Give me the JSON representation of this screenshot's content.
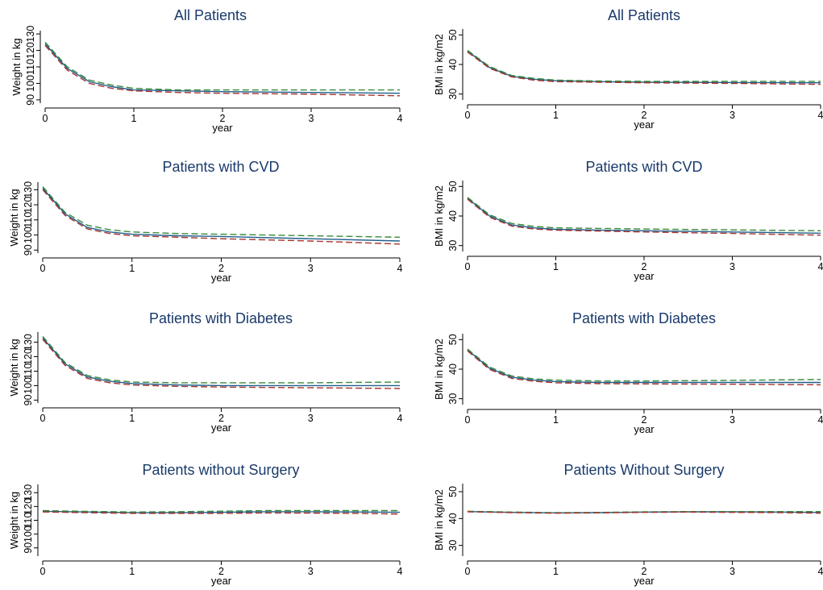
{
  "colors": {
    "title": "#1a3a6b",
    "axis": "#000000",
    "solid": "#1f5f8b",
    "dash_green": "#3a8a3a",
    "dash_red": "#a8322f"
  },
  "chart_data": [
    {
      "type": "line",
      "title": "All Patients",
      "xlabel": "year",
      "ylabel": "Weight in kg",
      "xlim": [
        0,
        4
      ],
      "ylim": [
        88,
        132
      ],
      "x_ticks": [
        "0",
        "1",
        "2",
        "3",
        "4"
      ],
      "y_ticks": [
        90,
        100,
        110,
        120,
        130
      ],
      "series": [
        {
          "style": "solid",
          "color": "#1f5f8b",
          "x": [
            0,
            0.25,
            0.5,
            0.75,
            1,
            1.5,
            2,
            3,
            4
          ],
          "y": [
            124,
            109,
            101,
            98,
            96,
            95.5,
            95,
            94.5,
            94
          ]
        },
        {
          "style": "dash",
          "color": "#3a8a3a",
          "x": [
            0,
            0.25,
            0.5,
            0.75,
            1,
            1.5,
            2,
            3,
            4
          ],
          "y": [
            125,
            110,
            102,
            99,
            97,
            96,
            96,
            96,
            96
          ]
        },
        {
          "style": "dash",
          "color": "#a8322f",
          "x": [
            0,
            0.25,
            0.5,
            0.75,
            1,
            1.5,
            2,
            3,
            4
          ],
          "y": [
            123,
            108,
            100,
            97,
            95.5,
            94.5,
            94,
            93.5,
            92.5
          ]
        }
      ]
    },
    {
      "type": "line",
      "title": "All Patients",
      "xlabel": "year",
      "ylabel": "BMI in kg/m2",
      "xlim": [
        0,
        4
      ],
      "ylim": [
        28,
        52
      ],
      "x_ticks": [
        "0",
        "1",
        "2",
        "3",
        "4"
      ],
      "y_ticks": [
        30,
        40,
        50
      ],
      "series": [
        {
          "style": "solid",
          "color": "#1f5f8b",
          "x": [
            0,
            0.25,
            0.5,
            0.75,
            1,
            1.5,
            2,
            3,
            4
          ],
          "y": [
            44.5,
            39,
            36,
            35,
            34.5,
            34.2,
            34,
            33.9,
            33.8
          ]
        },
        {
          "style": "dash",
          "color": "#3a8a3a",
          "x": [
            0,
            0.25,
            0.5,
            0.75,
            1,
            1.5,
            2,
            3,
            4
          ],
          "y": [
            44.8,
            39.3,
            36.3,
            35.3,
            34.7,
            34.4,
            34.3,
            34.3,
            34.3
          ]
        },
        {
          "style": "dash",
          "color": "#a8322f",
          "x": [
            0,
            0.25,
            0.5,
            0.75,
            1,
            1.5,
            2,
            3,
            4
          ],
          "y": [
            44.2,
            38.7,
            35.8,
            34.7,
            34.2,
            34,
            33.8,
            33.6,
            33.3
          ]
        }
      ]
    },
    {
      "type": "line",
      "title": "Patients with CVD",
      "xlabel": "year",
      "ylabel": "Weight in kg",
      "xlim": [
        0,
        4
      ],
      "ylim": [
        88,
        135
      ],
      "x_ticks": [
        "0",
        "1",
        "2",
        "3",
        "4"
      ],
      "y_ticks": [
        90,
        100,
        110,
        120,
        130
      ],
      "series": [
        {
          "style": "solid",
          "color": "#1f5f8b",
          "x": [
            0,
            0.25,
            0.5,
            0.75,
            1,
            1.5,
            2,
            3,
            4
          ],
          "y": [
            131,
            114,
            105,
            102,
            100.5,
            99.5,
            99,
            97.5,
            96
          ]
        },
        {
          "style": "dash",
          "color": "#3a8a3a",
          "x": [
            0,
            0.25,
            0.5,
            0.75,
            1,
            1.5,
            2,
            3,
            4
          ],
          "y": [
            132,
            115,
            106.5,
            103.5,
            102,
            101,
            100.5,
            99.5,
            98.5
          ]
        },
        {
          "style": "dash",
          "color": "#a8322f",
          "x": [
            0,
            0.25,
            0.5,
            0.75,
            1,
            1.5,
            2,
            3,
            4
          ],
          "y": [
            130,
            113,
            104,
            101,
            99.5,
            98.5,
            97.5,
            96,
            94
          ]
        }
      ]
    },
    {
      "type": "line",
      "title": "Patients with CVD",
      "xlabel": "year",
      "ylabel": "BMI in kg/m2",
      "xlim": [
        0,
        4
      ],
      "ylim": [
        28,
        52
      ],
      "x_ticks": [
        "0",
        "1",
        "2",
        "3",
        "4"
      ],
      "y_ticks": [
        30,
        40,
        50
      ],
      "series": [
        {
          "style": "solid",
          "color": "#1f5f8b",
          "x": [
            0,
            0.25,
            0.5,
            0.75,
            1,
            1.5,
            2,
            3,
            4
          ],
          "y": [
            46,
            40,
            37,
            36,
            35.5,
            35.2,
            35,
            34.6,
            34.2
          ]
        },
        {
          "style": "dash",
          "color": "#3a8a3a",
          "x": [
            0,
            0.25,
            0.5,
            0.75,
            1,
            1.5,
            2,
            3,
            4
          ],
          "y": [
            46.3,
            40.4,
            37.5,
            36.5,
            36,
            35.8,
            35.6,
            35.3,
            35
          ]
        },
        {
          "style": "dash",
          "color": "#a8322f",
          "x": [
            0,
            0.25,
            0.5,
            0.75,
            1,
            1.5,
            2,
            3,
            4
          ],
          "y": [
            45.7,
            39.6,
            36.6,
            35.6,
            35.2,
            34.9,
            34.6,
            34.1,
            33.5
          ]
        }
      ]
    },
    {
      "type": "line",
      "title": "Patients with Diabetes",
      "xlabel": "year",
      "ylabel": "Weight in kg",
      "xlim": [
        0,
        4
      ],
      "ylim": [
        88,
        137
      ],
      "x_ticks": [
        "0",
        "1",
        "2",
        "3",
        "4"
      ],
      "y_ticks": [
        90,
        100,
        110,
        120,
        130
      ],
      "series": [
        {
          "style": "solid",
          "color": "#1f5f8b",
          "x": [
            0,
            0.25,
            0.5,
            0.75,
            1,
            1.5,
            2,
            3,
            4
          ],
          "y": [
            133,
            115,
            106,
            103,
            101.5,
            100.5,
            100,
            100,
            100
          ]
        },
        {
          "style": "dash",
          "color": "#3a8a3a",
          "x": [
            0,
            0.25,
            0.5,
            0.75,
            1,
            1.5,
            2,
            3,
            4
          ],
          "y": [
            134,
            116,
            107,
            104,
            102.5,
            102,
            102,
            102,
            102.5
          ]
        },
        {
          "style": "dash",
          "color": "#a8322f",
          "x": [
            0,
            0.25,
            0.5,
            0.75,
            1,
            1.5,
            2,
            3,
            4
          ],
          "y": [
            132,
            114,
            105,
            102,
            100.5,
            99.5,
            99,
            98.5,
            98
          ]
        }
      ]
    },
    {
      "type": "line",
      "title": "Patients with Diabetes",
      "xlabel": "year",
      "ylabel": "BMI in kg/m2",
      "xlim": [
        0,
        4
      ],
      "ylim": [
        28,
        52
      ],
      "x_ticks": [
        "0",
        "1",
        "2",
        "3",
        "4"
      ],
      "y_ticks": [
        30,
        40,
        50
      ],
      "series": [
        {
          "style": "solid",
          "color": "#1f5f8b",
          "x": [
            0,
            0.25,
            0.5,
            0.75,
            1,
            1.5,
            2,
            3,
            4
          ],
          "y": [
            46.5,
            40.3,
            37.3,
            36.3,
            35.8,
            35.5,
            35.5,
            35.5,
            35.5
          ]
        },
        {
          "style": "dash",
          "color": "#3a8a3a",
          "x": [
            0,
            0.25,
            0.5,
            0.75,
            1,
            1.5,
            2,
            3,
            4
          ],
          "y": [
            46.8,
            40.7,
            37.7,
            36.7,
            36.3,
            36,
            36,
            36.2,
            36.5
          ]
        },
        {
          "style": "dash",
          "color": "#a8322f",
          "x": [
            0,
            0.25,
            0.5,
            0.75,
            1,
            1.5,
            2,
            3,
            4
          ],
          "y": [
            46.2,
            39.9,
            36.9,
            35.9,
            35.4,
            35.1,
            35,
            34.9,
            34.7
          ]
        }
      ]
    },
    {
      "type": "line",
      "title": "Patients without Surgery",
      "xlabel": "year",
      "ylabel": "Weight in kg",
      "xlim": [
        0,
        4
      ],
      "ylim": [
        84,
        136
      ],
      "x_ticks": [
        "0",
        "1",
        "2",
        "3",
        "4"
      ],
      "y_ticks": [
        90,
        100,
        110,
        120,
        130
      ],
      "series": [
        {
          "style": "solid",
          "color": "#1f5f8b",
          "x": [
            0,
            0.5,
            1,
            1.5,
            2,
            2.5,
            3,
            3.5,
            4
          ],
          "y": [
            116.5,
            116,
            115.5,
            115.5,
            115.8,
            116.2,
            116.2,
            116,
            115.8
          ]
        },
        {
          "style": "dash",
          "color": "#3a8a3a",
          "x": [
            0,
            0.5,
            1,
            1.5,
            2,
            2.5,
            3,
            3.5,
            4
          ],
          "y": [
            117,
            116.5,
            116,
            116.2,
            116.6,
            117,
            117,
            117,
            117
          ]
        },
        {
          "style": "dash",
          "color": "#a8322f",
          "x": [
            0,
            0.5,
            1,
            1.5,
            2,
            2.5,
            3,
            3.5,
            4
          ],
          "y": [
            116,
            115.5,
            115,
            115,
            115,
            115.3,
            115.2,
            115,
            114.5
          ]
        }
      ]
    },
    {
      "type": "line",
      "title": "Patients Without Surgery",
      "xlabel": "year",
      "ylabel": "BMI in kg/m2",
      "xlim": [
        0,
        4
      ],
      "ylim": [
        26,
        53
      ],
      "x_ticks": [
        "0",
        "1",
        "2",
        "3",
        "4"
      ],
      "y_ticks": [
        30,
        40,
        50
      ],
      "series": [
        {
          "style": "solid",
          "color": "#1f5f8b",
          "x": [
            0,
            0.5,
            1,
            1.5,
            2,
            2.5,
            3,
            3.5,
            4
          ],
          "y": [
            42.6,
            42.3,
            42.1,
            42.2,
            42.4,
            42.5,
            42.5,
            42.4,
            42.3
          ]
        },
        {
          "style": "dash",
          "color": "#3a8a3a",
          "x": [
            0,
            0.5,
            1,
            1.5,
            2,
            2.5,
            3,
            3.5,
            4
          ],
          "y": [
            42.7,
            42.4,
            42.2,
            42.3,
            42.5,
            42.6,
            42.6,
            42.6,
            42.6
          ]
        },
        {
          "style": "dash",
          "color": "#a8322f",
          "x": [
            0,
            0.5,
            1,
            1.5,
            2,
            2.5,
            3,
            3.5,
            4
          ],
          "y": [
            42.5,
            42.2,
            42,
            42.1,
            42.3,
            42.4,
            42.3,
            42.2,
            42
          ]
        }
      ]
    }
  ]
}
